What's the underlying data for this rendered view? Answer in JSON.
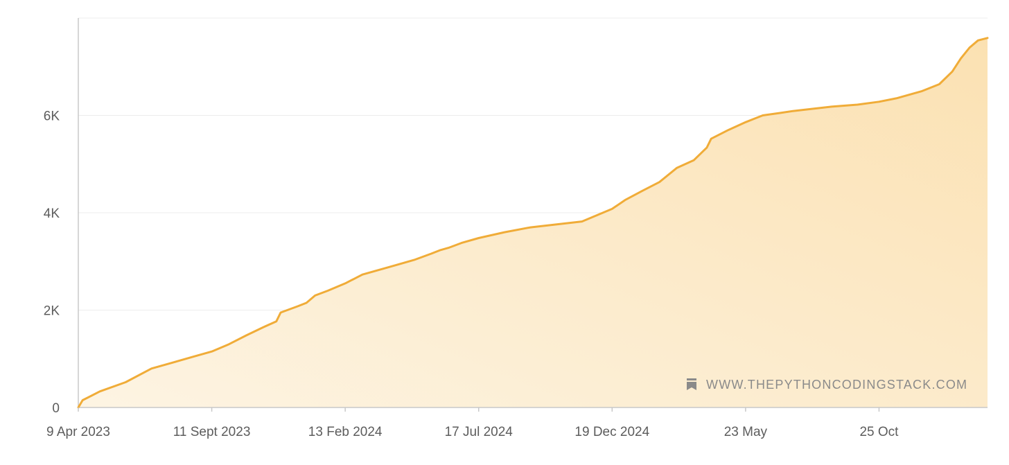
{
  "colors": {
    "line": "#f0ac38",
    "area_top": "#fbe2b4",
    "area_bottom": "#fdf3e0",
    "grid": "#ececec",
    "axis": "#c8c8c8",
    "text": "#5c5c5c",
    "watermark": "#8a8a8a"
  },
  "watermark": {
    "text": "WWW.THEPYTHONCODINGSTACK.COM",
    "icon": "bookmark-icon"
  },
  "chart_data": {
    "type": "area",
    "title": "",
    "xlabel": "",
    "ylabel": "",
    "grid": true,
    "ylim": [
      0,
      8000
    ],
    "xlim": [
      "2023-04-09",
      "2026-02-28"
    ],
    "y_ticks": [
      {
        "value": 0,
        "label": "0"
      },
      {
        "value": 2000,
        "label": "2K"
      },
      {
        "value": 4000,
        "label": "4K"
      },
      {
        "value": 6000,
        "label": "6K"
      }
    ],
    "x_ticks": [
      {
        "date": "2023-04-09",
        "label": "9 Apr 2023"
      },
      {
        "date": "2023-09-11",
        "label": "11 Sept 2023"
      },
      {
        "date": "2024-02-13",
        "label": "13 Feb 2024"
      },
      {
        "date": "2024-07-17",
        "label": "17 Jul 2024"
      },
      {
        "date": "2024-12-19",
        "label": "19 Dec 2024"
      },
      {
        "date": "2025-05-23",
        "label": "23 May"
      },
      {
        "date": "2025-10-25",
        "label": "25 Oct"
      }
    ],
    "series": [
      {
        "x": [
          "2023-04-09",
          "2023-04-14",
          "2023-05-04",
          "2023-06-03",
          "2023-07-03",
          "2023-07-23",
          "2023-08-22",
          "2023-09-11",
          "2023-10-01",
          "2023-10-21",
          "2023-11-10",
          "2023-11-25",
          "2023-11-30",
          "2023-12-20",
          "2023-12-30",
          "2024-01-09",
          "2024-01-24",
          "2024-02-13",
          "2024-03-04",
          "2024-04-03",
          "2024-05-03",
          "2024-05-23",
          "2024-06-02",
          "2024-06-12",
          "2024-06-27",
          "2024-07-17",
          "2024-08-16",
          "2024-09-15",
          "2024-10-15",
          "2024-11-14",
          "2024-12-19",
          "2025-01-03",
          "2025-01-23",
          "2025-02-12",
          "2025-03-04",
          "2025-03-24",
          "2025-04-08",
          "2025-04-13",
          "2025-05-03",
          "2025-05-23",
          "2025-06-02",
          "2025-06-12",
          "2025-07-02",
          "2025-07-17",
          "2025-08-01",
          "2025-08-31",
          "2025-09-30",
          "2025-10-25",
          "2025-11-14",
          "2025-12-14",
          "2026-01-03",
          "2026-01-18",
          "2026-01-28",
          "2026-02-07",
          "2026-02-17",
          "2026-02-28"
        ],
        "y": [
          0,
          150,
          330,
          520,
          800,
          900,
          1050,
          1150,
          1300,
          1480,
          1650,
          1770,
          1950,
          2080,
          2150,
          2300,
          2400,
          2550,
          2730,
          2880,
          3030,
          3160,
          3230,
          3280,
          3380,
          3480,
          3600,
          3700,
          3760,
          3820,
          4080,
          4260,
          4450,
          4630,
          4920,
          5080,
          5340,
          5520,
          5700,
          5860,
          5930,
          6000,
          6050,
          6090,
          6120,
          6180,
          6220,
          6280,
          6350,
          6500,
          6640,
          6900,
          7170,
          7390,
          7540,
          7590
        ]
      }
    ]
  }
}
